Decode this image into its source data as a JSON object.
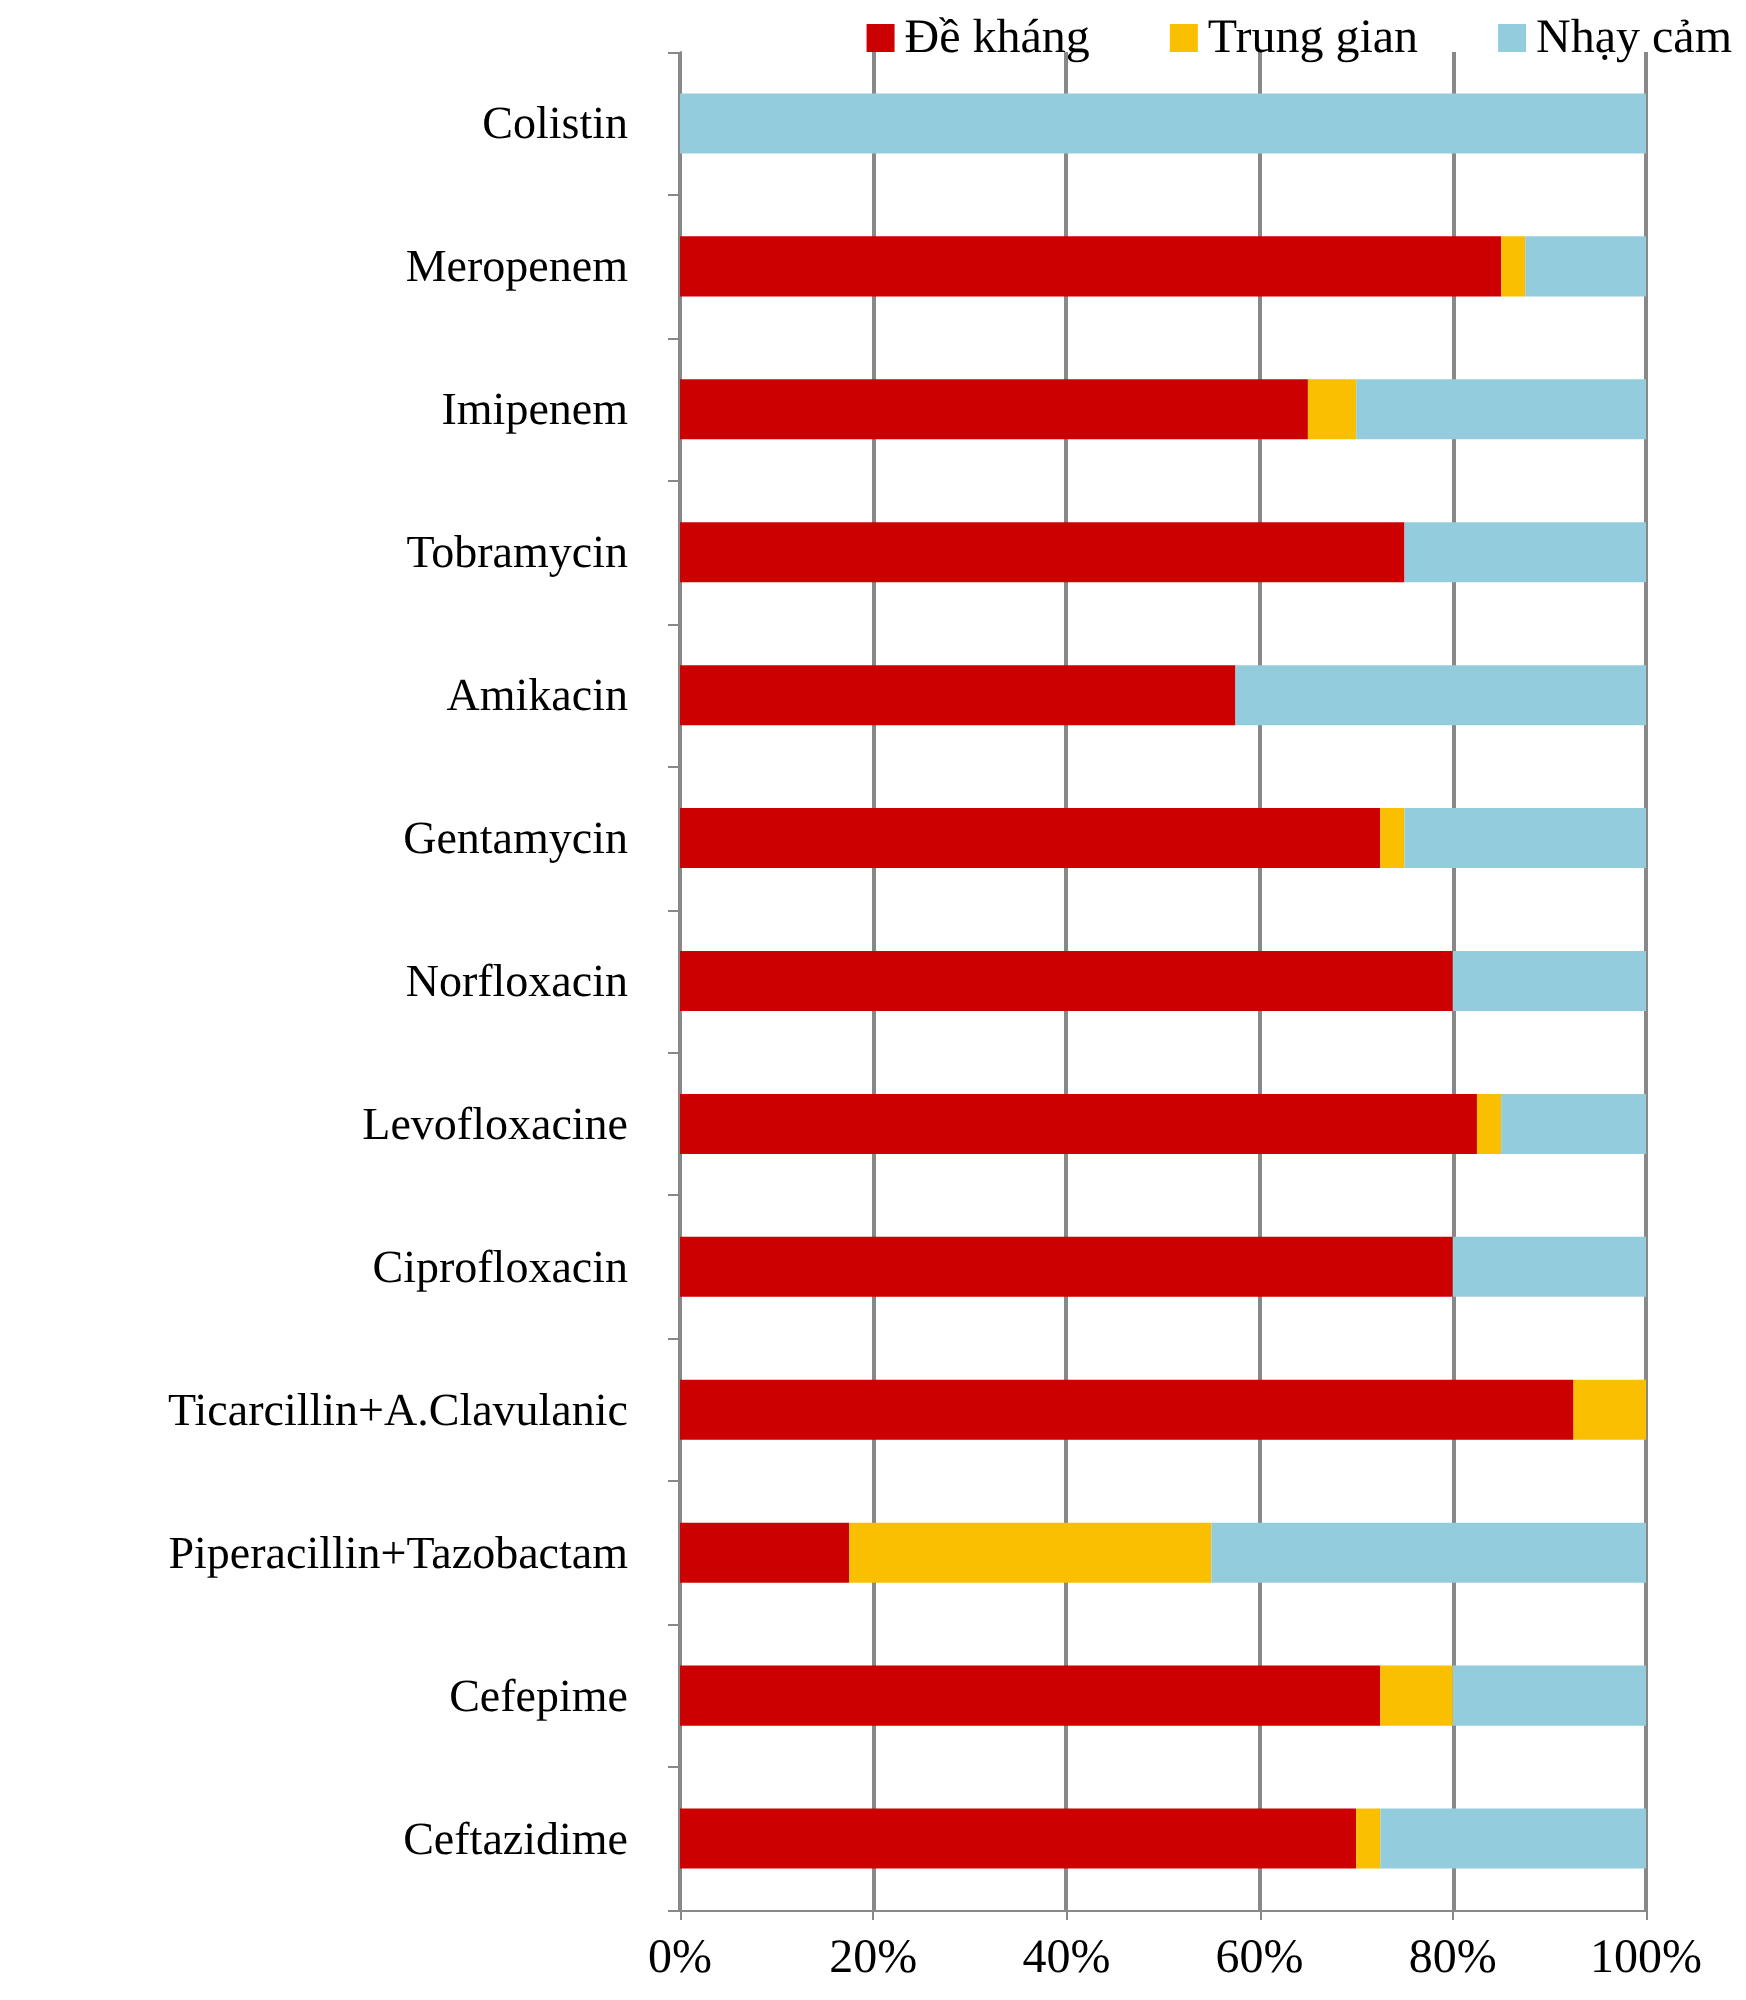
{
  "chart_data": {
    "type": "bar",
    "orientation": "horizontal",
    "stacked": true,
    "categories": [
      "Colistin",
      "Meropenem",
      "Imipenem",
      "Tobramycin",
      "Amikacin",
      "Gentamycin",
      "Norfloxacin",
      "Levofloxacine",
      "Ciprofloxacin",
      "Ticarcillin+A.Clavulanic",
      "Piperacillin+Tazobactam",
      "Cefepime",
      "Ceftazidime"
    ],
    "series": [
      {
        "name": "Đề kháng",
        "color": "#cc0000",
        "values": [
          0,
          85,
          65,
          75,
          57.5,
          72.5,
          80,
          82.5,
          80,
          92.5,
          17.5,
          72.5,
          70
        ]
      },
      {
        "name": "Trung gian",
        "color": "#f9bf00",
        "values": [
          0,
          2.5,
          5,
          0,
          0,
          2.5,
          0,
          2.5,
          0,
          7.5,
          37.5,
          7.5,
          2.5
        ]
      },
      {
        "name": "Nhạy cảm",
        "color": "#93cddd",
        "values": [
          100,
          12.5,
          30,
          25,
          42.5,
          25,
          20,
          15,
          20,
          0,
          45,
          20,
          27.5
        ]
      }
    ],
    "xlim": [
      0,
      100
    ],
    "xticks": [
      {
        "value": 0,
        "label": "0%"
      },
      {
        "value": 20,
        "label": "20%"
      },
      {
        "value": 40,
        "label": "40%"
      },
      {
        "value": 60,
        "label": "60%"
      },
      {
        "value": 80,
        "label": "80%"
      },
      {
        "value": 100,
        "label": "100%"
      }
    ],
    "grid": "x",
    "legend": "top right"
  }
}
